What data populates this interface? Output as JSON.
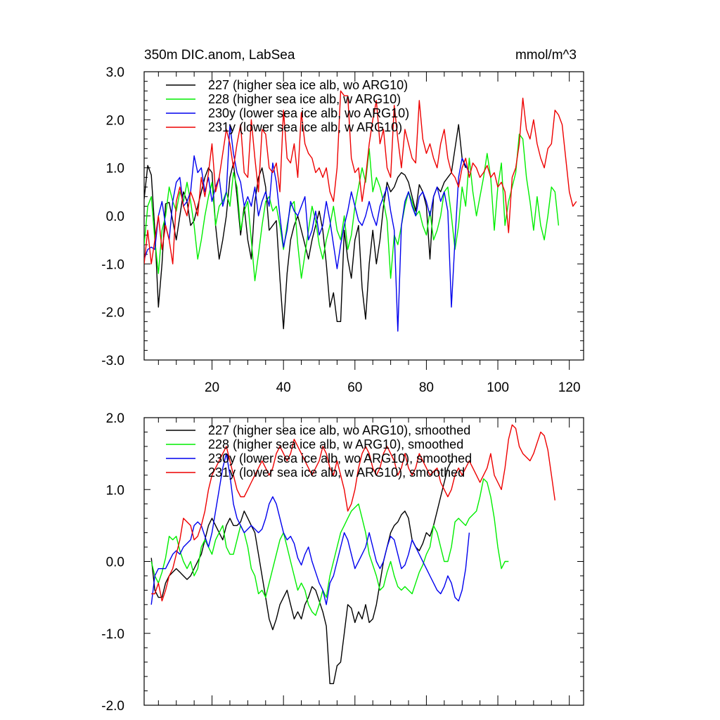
{
  "chart_data": [
    {
      "type": "line",
      "title": "350m DIC.anom, LabSea",
      "units": "mmol/m^3",
      "xlim": [
        1,
        124
      ],
      "ylim": [
        -3,
        3
      ],
      "yticks": [
        "3.0",
        "2.0",
        "1.0",
        "0.0",
        "-1.0",
        "-2.0",
        "-3.0"
      ],
      "xticks": [
        "20",
        "40",
        "60",
        "80",
        "100",
        "120"
      ],
      "legend_position": "top-left",
      "series": [
        {
          "name": "227 (higher sea ice alb, wo ARG10)",
          "color": "#000000",
          "x_start": 1,
          "values": [
            0.35,
            1.05,
            0.85,
            -0.3,
            -1.9,
            -1.0,
            0.25,
            0.28,
            -0.1,
            -0.5,
            0.0,
            0.5,
            0.3,
            -0.2,
            -0.1,
            0.2,
            0.5,
            0.8,
            1.0,
            0.9,
            -0.2,
            -0.9,
            -0.5,
            0.0,
            0.8,
            1.1,
            0.4,
            -0.4,
            0.2,
            -0.5,
            -0.9,
            0.3,
            0.8,
            1.0,
            0.6,
            -0.3,
            -0.2,
            -0.1,
            -1.3,
            -2.35,
            -1.2,
            -0.5,
            -0.2,
            0.0,
            -0.3,
            -0.6,
            -0.9,
            -0.5,
            -0.2,
            0.1,
            -0.3,
            -1.0,
            -1.9,
            -1.6,
            -2.2,
            -2.2,
            -0.3,
            -0.9,
            -1.3,
            -0.5,
            -0.2,
            -1.5,
            -2.15,
            -1.0,
            -0.3,
            -1.0,
            -0.5,
            0.2,
            0.7,
            0.5,
            0.6,
            0.8,
            0.9,
            0.85,
            0.7,
            0.4,
            0.1,
            0.65,
            0.5,
            0.2,
            -0.9,
            0.4,
            0.6,
            0.5,
            0.7,
            0.8,
            0.9,
            1.4,
            1.9,
            1.2,
            1.0
          ]
        },
        {
          "name": "228 (higher sea ice alb, w ARG10)",
          "color": "#00ee00",
          "x_start": 1,
          "values": [
            -0.6,
            0.2,
            0.4,
            -0.5,
            -1.2,
            -0.3,
            0.0,
            0.6,
            0.3,
            0.1,
            0.5,
            0.3,
            0.7,
            0.3,
            -0.2,
            -0.9,
            -0.5,
            0.0,
            0.4,
            0.7,
            -0.2,
            0.2,
            0.3,
            0.5,
            0.2,
            0.9,
            0.6,
            -0.3,
            0.1,
            0.3,
            -0.5,
            -1.35,
            -0.8,
            -0.2,
            0.3,
            0.4,
            0.1,
            0.2,
            -0.2,
            -0.7,
            -0.2,
            0.2,
            0.3,
            -0.6,
            -1.3,
            -0.8,
            -0.3,
            0.2,
            -0.1,
            -0.6,
            -0.9,
            -0.5,
            -0.2,
            0.2,
            -0.3,
            -0.5,
            0.0,
            -0.7,
            -0.4,
            0.2,
            0.6,
            1.0,
            0.7,
            1.4,
            0.5,
            0.8,
            0.6,
            0.3,
            -0.1,
            -1.3,
            -0.4,
            -0.6,
            -0.2,
            0.2,
            0.5,
            0.3,
            0.0,
            0.1,
            -0.2,
            -0.4,
            0.1,
            -0.5,
            -0.3,
            0.0,
            0.5,
            0.6,
            0.0,
            -0.7,
            -0.2,
            0.6,
            0.2,
            1.2,
            0.5,
            0.0,
            0.4,
            0.8,
            1.3,
            0.8,
            -0.3,
            0.6,
            1.1,
            -0.2,
            0.3,
            0.6,
            0.9,
            1.7,
            1.6,
            0.8,
            0.3,
            -0.3,
            0.4,
            -0.2,
            -0.5,
            0.0,
            0.6,
            0.5,
            -0.2
          ]
        },
        {
          "name": "230y (lower sea ice alb, wo ARG10)",
          "color": "#0000ee",
          "x_start": 1,
          "values": [
            -0.9,
            -0.7,
            -0.65,
            -0.7,
            0.0,
            0.3,
            -0.2,
            -0.5,
            0.3,
            0.7,
            0.8,
            0.2,
            0.3,
            0.5,
            1.25,
            0.9,
            1.0,
            0.5,
            0.8,
            0.3,
            0.6,
            0.8,
            0.2,
            0.5,
            1.9,
            1.3,
            0.9,
            0.7,
            0.2,
            0.4,
            0.2,
            0.6,
            0.0,
            0.3,
            0.5,
            0.2,
            1.1,
            0.7,
            0.0,
            -0.65,
            -0.3,
            0.3,
            0.1,
            0.0,
            0.2,
            0.4,
            -0.5,
            -0.3,
            0.1,
            -0.4,
            -0.2,
            0.3,
            -0.1,
            -0.6,
            -1.1,
            -0.6,
            -0.2,
            0.1,
            0.5,
            0.2,
            -0.1,
            -0.2,
            0.0,
            0.3,
            0.0,
            -0.2,
            0.2,
            0.4,
            0.6,
            0.1,
            -0.3,
            -2.4,
            -0.2,
            0.3,
            0.5,
            0.2,
            0.0,
            0.4,
            0.5,
            0.3,
            0.0,
            0.4,
            0.6,
            0.3,
            0.5,
            0.1,
            -1.9,
            -0.5,
            0.8,
            1.2,
            1.05,
            0.9
          ]
        },
        {
          "name": "231y (lower sea ice alb, w ARG10)",
          "color": "#ee0000",
          "x_start": 1,
          "values": [
            -1.0,
            -0.3,
            -1.0,
            -0.5,
            0.0,
            -0.7,
            -0.2,
            -0.5,
            -1.0,
            0.3,
            0.6,
            0.2,
            0.0,
            0.5,
            0.3,
            0.0,
            0.8,
            0.4,
            0.9,
            1.5,
            0.5,
            0.8,
            1.3,
            1.8,
            1.5,
            1.0,
            1.5,
            1.9,
            0.9,
            0.8,
            2.0,
            1.2,
            0.5,
            1.8,
            1.7,
            1.0,
            0.9,
            1.1,
            0.5,
            2.2,
            1.2,
            1.1,
            1.5,
            0.8,
            2.15,
            1.5,
            1.3,
            1.2,
            0.9,
            1.0,
            0.8,
            1.0,
            0.5,
            0.3,
            1.0,
            2.6,
            2.5,
            2.5,
            1.2,
            0.9,
            1.0,
            0.3,
            0.8,
            1.5,
            2.0,
            2.4,
            1.5,
            1.8,
            1.0,
            0.8,
            2.3,
            1.6,
            1.0,
            1.8,
            1.5,
            1.2,
            1.1,
            2.4,
            1.6,
            1.3,
            1.5,
            1.2,
            1.0,
            1.5,
            1.8,
            1.2,
            0.9,
            0.8,
            0.6,
            1.0,
            1.2,
            0.8,
            1.1,
            1.0,
            0.8,
            0.9,
            1.05,
            0.8,
            0.9,
            0.6,
            0.7,
            0.5,
            -0.35,
            0.8,
            1.0,
            1.5,
            2.45,
            1.8,
            1.6,
            2.0,
            1.5,
            1.2,
            1.0,
            1.4,
            1.5,
            2.2,
            2.1,
            1.9,
            1.2,
            0.5,
            0.2,
            0.3
          ]
        }
      ]
    },
    {
      "type": "line",
      "xlim": [
        1,
        124
      ],
      "ylim": [
        -2,
        2
      ],
      "yticks": [
        "2.0",
        "1.0",
        "0.0",
        "-1.0",
        "-2.0"
      ],
      "legend_position": "top-left",
      "series": [
        {
          "name": "227 (higher sea ice alb, wo ARG10), smoothed",
          "color": "#000000",
          "x_start": 3,
          "values": [
            0.05,
            -0.4,
            -0.5,
            -0.5,
            -0.3,
            -0.2,
            -0.15,
            -0.1,
            -0.15,
            -0.2,
            -0.25,
            -0.2,
            -0.1,
            0.0,
            0.1,
            0.3,
            0.5,
            0.6,
            0.5,
            0.4,
            0.3,
            0.5,
            0.6,
            0.5,
            0.5,
            0.55,
            0.7,
            0.6,
            0.5,
            0.4,
            0.1,
            -0.2,
            -0.5,
            -0.8,
            -0.95,
            -0.8,
            -0.6,
            -0.5,
            -0.4,
            -0.6,
            -0.8,
            -0.7,
            -0.8,
            -0.6,
            -0.5,
            -0.35,
            -0.4,
            -0.55,
            -0.7,
            -0.9,
            -1.7,
            -1.7,
            -1.45,
            -1.4,
            -1.0,
            -0.6,
            -0.65,
            -0.85,
            -0.7,
            -0.8,
            -0.6,
            -0.85,
            -0.8,
            -0.6,
            -0.3,
            0.0,
            0.2,
            0.4,
            0.5,
            0.55,
            0.65,
            0.7,
            0.6,
            0.3,
            0.2,
            0.15,
            0.25,
            0.4,
            0.35,
            0.5,
            0.7,
            0.9,
            1.1,
            1.3,
            1.4
          ]
        },
        {
          "name": "228 (higher sea ice alb, w ARG10), smoothed",
          "color": "#00ee00",
          "x_start": 3,
          "values": [
            0.0,
            -0.2,
            -0.3,
            -0.15,
            0.05,
            0.35,
            0.3,
            0.35,
            0.15,
            0.0,
            -0.1,
            0.0,
            -0.2,
            -0.1,
            0.2,
            0.3,
            0.2,
            0.1,
            0.3,
            0.4,
            0.5,
            0.2,
            0.1,
            0.1,
            0.3,
            0.5,
            0.4,
            0.2,
            -0.1,
            -0.2,
            -0.45,
            -0.4,
            -0.5,
            -0.3,
            -0.1,
            0.1,
            0.3,
            0.4,
            0.2,
            0.0,
            -0.2,
            -0.4,
            -0.3,
            -0.4,
            -0.6,
            -0.7,
            -0.75,
            -0.6,
            -0.4,
            -0.5,
            -0.2,
            0.0,
            0.2,
            0.4,
            0.5,
            0.6,
            0.7,
            0.75,
            0.8,
            0.6,
            0.4,
            0.1,
            -0.05,
            -0.2,
            -0.4,
            -0.35,
            -0.15,
            0.0,
            -0.2,
            -0.35,
            -0.4,
            -0.35,
            -0.4,
            -0.45,
            -0.3,
            -0.15,
            -0.05,
            0.1,
            0.2,
            0.5,
            0.4,
            0.2,
            0.0,
            0.0,
            0.2,
            0.55,
            0.6,
            0.55,
            0.5,
            0.6,
            0.65,
            0.7,
            0.9,
            1.15,
            1.1,
            0.9,
            0.6,
            0.2,
            -0.1,
            0.0,
            0.0
          ]
        },
        {
          "name": "230y (lower sea ice alb, wo ARG10), smoothed",
          "color": "#0000ee",
          "x_start": 3,
          "values": [
            -0.6,
            -0.2,
            -0.1,
            -0.1,
            -0.1,
            0.0,
            0.1,
            0.15,
            0.1,
            0.2,
            0.25,
            0.3,
            0.5,
            0.55,
            0.5,
            0.35,
            0.2,
            0.4,
            0.7,
            1.0,
            1.3,
            1.5,
            1.2,
            0.8,
            0.6,
            0.5,
            0.4,
            0.45,
            0.5,
            0.45,
            0.4,
            0.45,
            0.6,
            0.8,
            0.9,
            0.8,
            0.6,
            0.4,
            0.3,
            0.35,
            0.25,
            0.05,
            -0.05,
            0.1,
            0.2,
            0.0,
            -0.15,
            -0.3,
            -0.4,
            -0.6,
            -0.3,
            -0.2,
            0.0,
            0.2,
            0.4,
            0.3,
            0.1,
            -0.1,
            0.0,
            0.1,
            0.2,
            0.4,
            0.2,
            0.0,
            -0.1,
            0.0,
            0.2,
            0.35,
            0.3,
            0.1,
            -0.1,
            -0.05,
            0.1,
            0.3,
            0.2,
            0.1,
            0.0,
            -0.1,
            -0.2,
            -0.3,
            -0.4,
            -0.45,
            -0.35,
            -0.2,
            -0.3,
            -0.5,
            -0.55,
            -0.4,
            -0.1,
            0.4
          ]
        },
        {
          "name": "231y (lower sea ice alb, w ARG10), smoothed",
          "color": "#ee0000",
          "x_start": 3,
          "values": [
            -0.45,
            -0.45,
            -0.3,
            -0.55,
            -0.4,
            -0.2,
            -0.1,
            0.1,
            0.3,
            0.6,
            0.55,
            0.5,
            0.3,
            0.35,
            0.5,
            0.7,
            1.0,
            1.2,
            1.3,
            1.4,
            1.5,
            1.6,
            1.4,
            1.2,
            1.0,
            0.9,
            0.9,
            1.0,
            1.1,
            1.2,
            1.3,
            1.4,
            1.3,
            1.2,
            1.3,
            1.5,
            1.6,
            1.5,
            1.4,
            1.5,
            1.7,
            1.6,
            1.5,
            1.4,
            1.3,
            1.2,
            1.3,
            1.4,
            1.6,
            1.5,
            1.3,
            1.2,
            1.4,
            1.2,
            1.0,
            0.7,
            0.8,
            1.0,
            1.3,
            1.5,
            1.6,
            1.5,
            1.3,
            1.2,
            1.3,
            1.5,
            1.6,
            1.5,
            1.4,
            1.2,
            1.3,
            1.5,
            1.3,
            1.2,
            1.3,
            1.5,
            1.4,
            1.3,
            1.2,
            1.25,
            1.3,
            1.1,
            1.0,
            0.9,
            1.0,
            1.2,
            1.3,
            1.2,
            1.3,
            1.4,
            1.3,
            1.2,
            1.1,
            1.2,
            1.3,
            1.5,
            1.2,
            1.1,
            1.0,
            1.3,
            1.7,
            1.9,
            1.85,
            1.6,
            1.5,
            1.45,
            1.4,
            1.5,
            1.65,
            1.8,
            1.75,
            1.55,
            1.2,
            0.85
          ]
        }
      ]
    }
  ]
}
